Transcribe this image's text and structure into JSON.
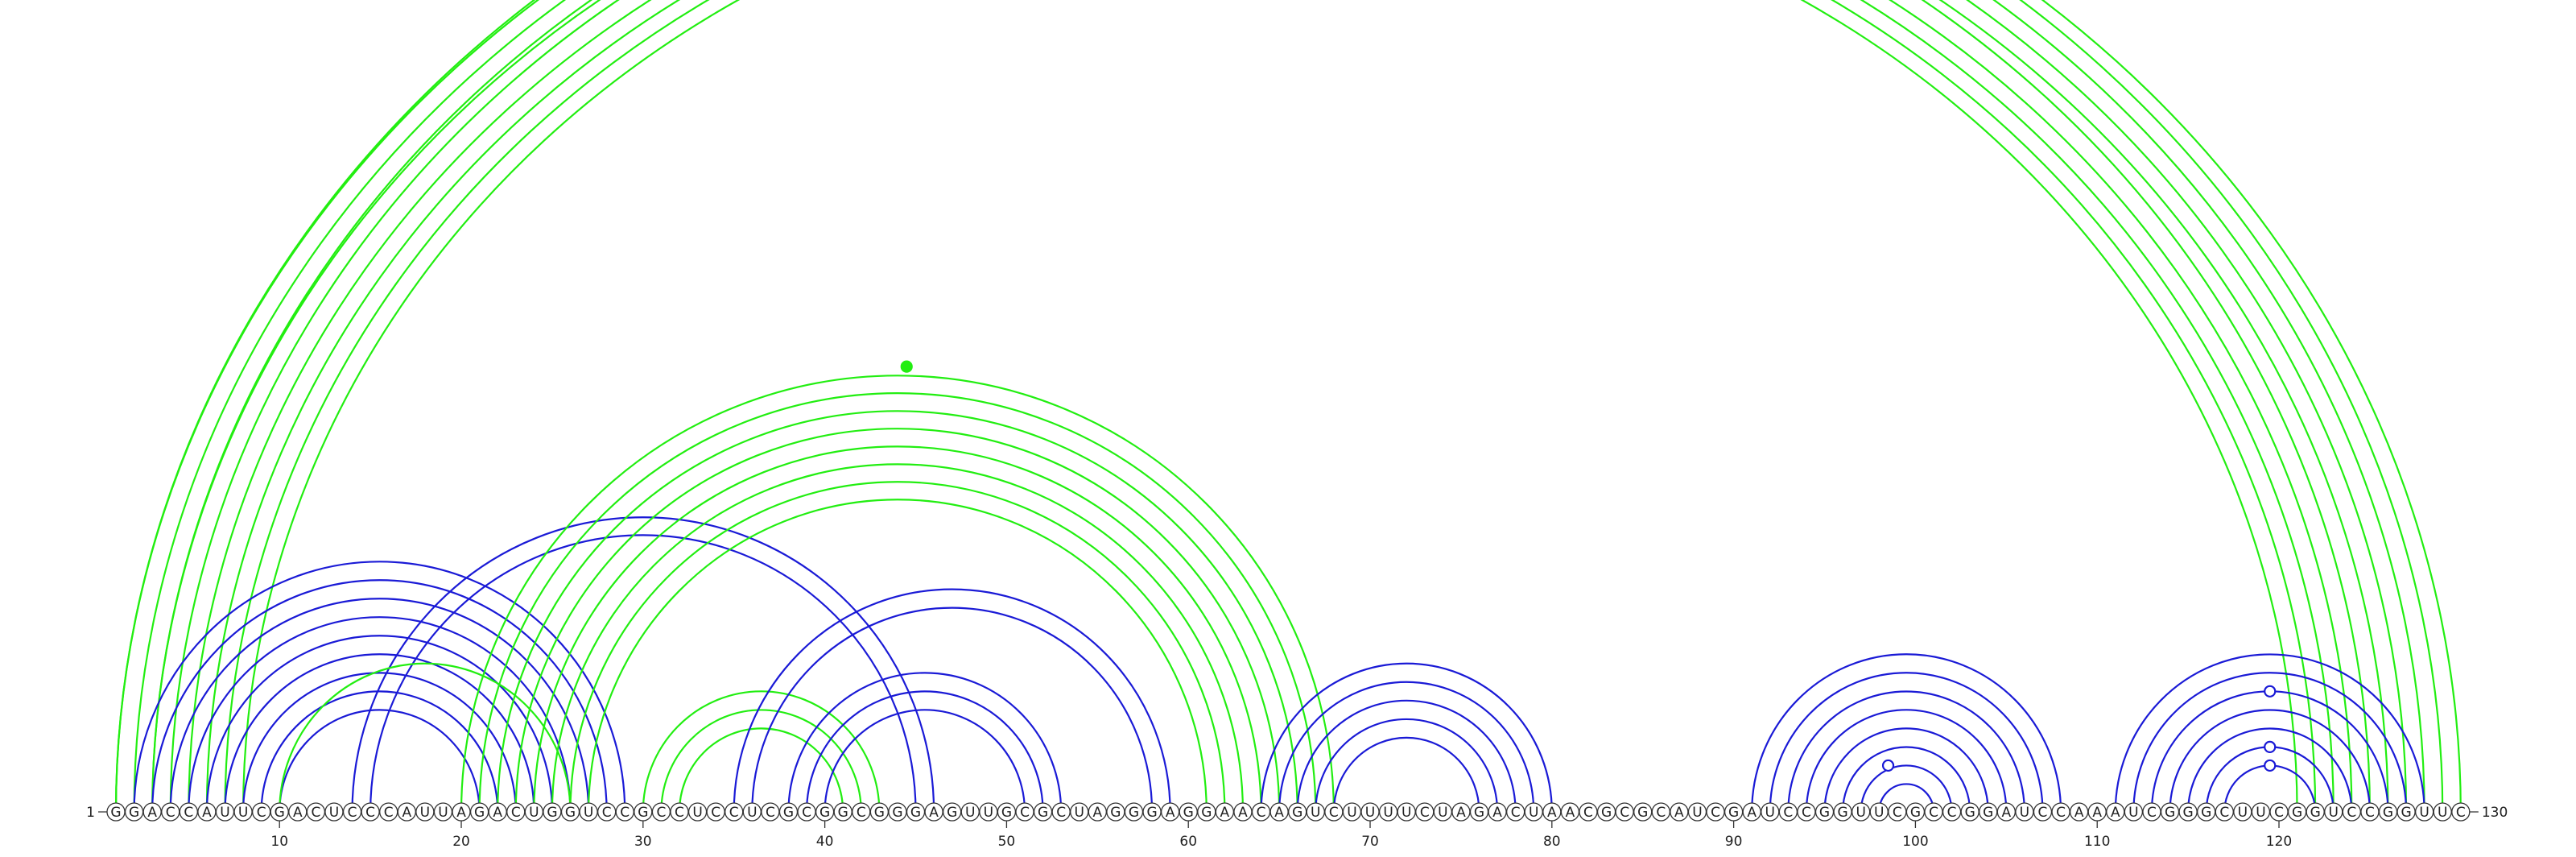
{
  "diagram": {
    "type": "rna-arc-diagram",
    "sequence": "GGACCAUUCGACUCCCAUUAGACUGGUCCGCCUCCUCGCGGCGGGAGUUGCGCUAGGGAGGAACAGUCUUUUCUAGACUAACGCGCAUCGAUCCGGUUCGCCGGAUCCAAAUCGGGCUUCGGUCCGGUUC",
    "start_label": "1",
    "end_label": "130",
    "tick_labels": [
      "10",
      "20",
      "30",
      "40",
      "50",
      "60",
      "70",
      "80",
      "90",
      "100",
      "110",
      "120"
    ],
    "colors": {
      "green": "#22ee11",
      "blue": "#1a1ad6"
    },
    "arc_sets": [
      {
        "color": "green",
        "pairs": [
          [
            1,
            129
          ],
          [
            2,
            128
          ],
          [
            3,
            127
          ],
          [
            4,
            126
          ],
          [
            5,
            124
          ],
          [
            6,
            123
          ],
          [
            7,
            122
          ],
          [
            8,
            121
          ]
        ]
      },
      {
        "color": "green",
        "pairs": [
          [
            1,
            130
          ],
          [
            3,
            125
          ]
        ]
      },
      {
        "color": "blue",
        "pairs": [
          [
            2,
            29
          ],
          [
            3,
            28
          ],
          [
            4,
            27
          ],
          [
            5,
            26
          ],
          [
            6,
            25
          ],
          [
            7,
            24
          ],
          [
            8,
            23
          ],
          [
            9,
            22
          ],
          [
            10,
            21
          ]
        ]
      },
      {
        "color": "blue",
        "pairs": [
          [
            14,
            46
          ],
          [
            15,
            45
          ]
        ]
      },
      {
        "color": "green",
        "pairs": [
          [
            10,
            26
          ]
        ]
      },
      {
        "color": "green",
        "pairs": [
          [
            20,
            68
          ],
          [
            21,
            67
          ],
          [
            22,
            66
          ],
          [
            23,
            65
          ],
          [
            24,
            64
          ],
          [
            25,
            63
          ],
          [
            26,
            62
          ],
          [
            27,
            61
          ]
        ]
      },
      {
        "color": "green",
        "pairs": [
          [
            30,
            43
          ],
          [
            31,
            42
          ],
          [
            32,
            41
          ]
        ]
      },
      {
        "color": "blue",
        "pairs": [
          [
            35,
            59
          ],
          [
            36,
            58
          ]
        ]
      },
      {
        "color": "blue",
        "pairs": [
          [
            38,
            53
          ],
          [
            39,
            52
          ],
          [
            40,
            51
          ]
        ]
      },
      {
        "color": "blue",
        "pairs": [
          [
            64,
            80
          ],
          [
            65,
            79
          ],
          [
            66,
            78
          ],
          [
            67,
            77
          ],
          [
            68,
            76
          ]
        ]
      },
      {
        "color": "blue",
        "pairs": [
          [
            91,
            108
          ],
          [
            92,
            107
          ],
          [
            93,
            106
          ],
          [
            94,
            105
          ],
          [
            95,
            104
          ],
          [
            96,
            103
          ],
          [
            97,
            102
          ],
          [
            98,
            101
          ]
        ]
      },
      {
        "color": "blue",
        "pairs": [
          [
            111,
            128
          ],
          [
            112,
            127
          ],
          [
            113,
            126
          ],
          [
            114,
            125
          ],
          [
            115,
            124
          ],
          [
            116,
            123
          ],
          [
            117,
            122
          ]
        ]
      }
    ],
    "markers": [
      {
        "color": "green",
        "fill": "open",
        "pair": [
          8,
          124
        ]
      },
      {
        "color": "green",
        "fill": "filled",
        "pair": [
          20,
          69
        ]
      },
      {
        "color": "blue",
        "fill": "open",
        "pair": [
          96,
          101
        ]
      },
      {
        "color": "blue",
        "fill": "open",
        "pair": [
          113,
          126
        ]
      },
      {
        "color": "blue",
        "fill": "open",
        "pair": [
          116,
          123
        ]
      },
      {
        "color": "blue",
        "fill": "open",
        "pair": [
          117,
          122
        ]
      }
    ]
  }
}
